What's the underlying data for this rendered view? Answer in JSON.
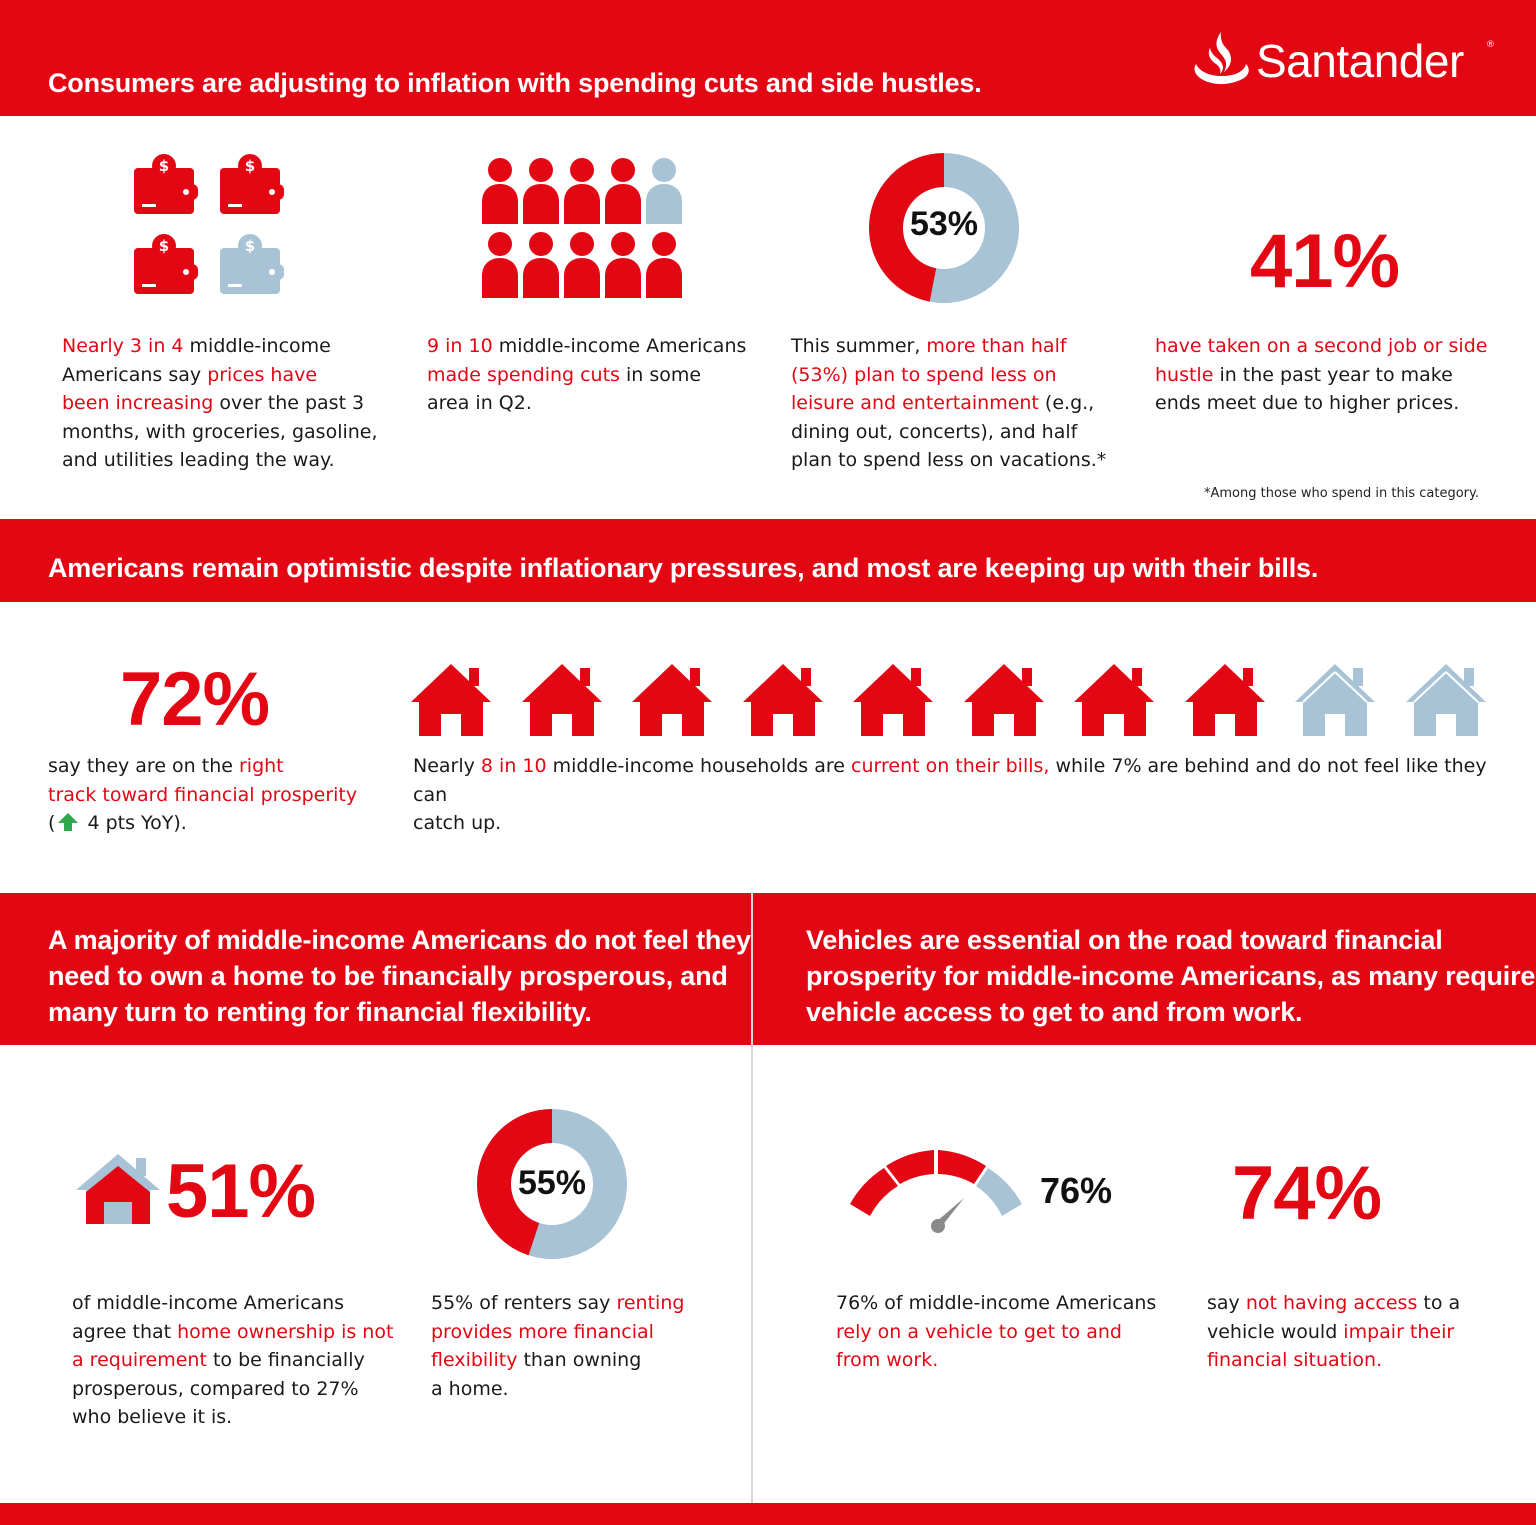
{
  "brand": {
    "logo_text": "Santander",
    "colors": {
      "red": "#e30613",
      "light_blue": "#a7c3d5",
      "green": "#2ea84a"
    }
  },
  "section1": {
    "title": "Consumers are adjusting to inflation with spending cuts and side hustles.",
    "stat1": {
      "icon": "wallet-dollar-icon",
      "filled": 3,
      "total": 4,
      "l1a": "Nearly 3 in 4",
      "l1b": " middle-income",
      "l2a": "Americans say ",
      "l2b": "prices have",
      "l3a": "been increasing",
      "l3b": " over the past 3",
      "l4": "months, with groceries, gasoline,",
      "l5": "and utilities leading the way."
    },
    "stat2": {
      "icon": "person-icon",
      "filled": 9,
      "total": 10,
      "l1a": "9 in 10",
      "l1b": " middle-income Americans",
      "l2a": "made spending cuts",
      "l2b": " in some",
      "l3": "area in Q2."
    },
    "stat3": {
      "ring_label": "53%",
      "ring_value": 53,
      "l1a": "This summer, ",
      "l1b": "more than half",
      "l2": "(53%) plan to spend less on",
      "l3a": "leisure and entertainment",
      "l3b": " (e.g.,",
      "l4": "dining out, concerts), and half",
      "l5": "plan to spend less on vacations.*"
    },
    "stat4": {
      "value": "41%",
      "l1": "have taken on a second job or side",
      "l2a": "hustle",
      "l2b": " in the past year to make",
      "l3": "ends meet due to higher prices."
    },
    "footnote": "*Among those who spend in this category."
  },
  "section2": {
    "title": "Americans remain optimistic despite inflationary pressures, and most are keeping up with their bills.",
    "stat1": {
      "value": "72%",
      "l1a": "say they are on the ",
      "l1b": "right",
      "l2": "track toward financial prosperity",
      "l3a": "(",
      "l3_icon": "arrow-up-icon",
      "l3b": " 4 pts YoY)."
    },
    "stat2": {
      "icon": "house-icon",
      "filled": 8,
      "total": 10,
      "l1a": "Nearly ",
      "l1b": "8 in 10",
      "l1c": " middle-income households are ",
      "l1d": "current on their bills,",
      "l1e": " while 7% are behind and do not feel like they can",
      "l2": "catch up."
    }
  },
  "section3": {
    "title_l1": "A majority of middle-income Americans do not feel they",
    "title_l2": "need to own a home to be financially prosperous, and",
    "title_l3": "many turn to renting for financial flexibility.",
    "stat1": {
      "value": "51%",
      "icon": "house-icon",
      "l1": "of middle-income Americans",
      "l2a": "agree that ",
      "l2b": "home ownership is not",
      "l3a": "a requirement",
      "l3b": " to be financially",
      "l4": "prosperous, compared to 27%",
      "l5": "who believe it is."
    },
    "stat2": {
      "ring_label": "55%",
      "ring_value": 55,
      "l1a": "55% of renters say ",
      "l1b": "renting",
      "l2": "provides more financial",
      "l3a": "flexibility",
      "l3b": " than owning",
      "l4": "a home."
    }
  },
  "section4": {
    "title_l1": "Vehicles are essential on the road toward financial",
    "title_l2": "prosperity for middle-income Americans, as many require",
    "title_l3": "vehicle access to get to and from work.",
    "stat1": {
      "value": "76%",
      "gauge_value": 76,
      "icon": "gauge-icon",
      "l1": "76% of middle-income Americans",
      "l2": "rely on a vehicle to get to and",
      "l3": "from work."
    },
    "stat2": {
      "value": "74%",
      "l1a": "say ",
      "l1b": "not having access",
      "l1c": " to a",
      "l2a": "vehicle would ",
      "l2b": "impair their",
      "l3": "financial situation."
    }
  }
}
